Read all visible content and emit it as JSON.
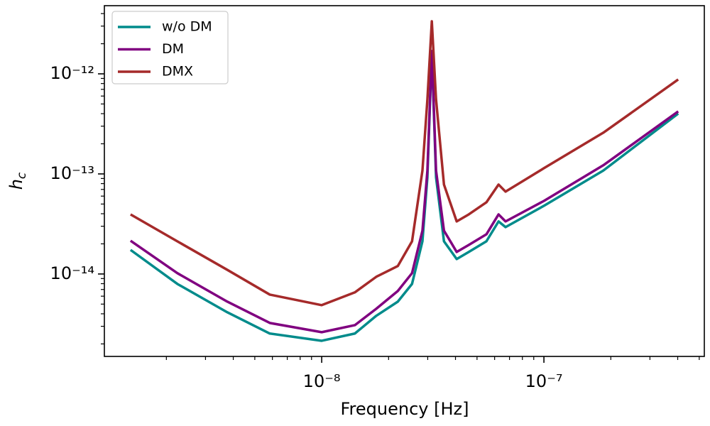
{
  "chart_data": {
    "type": "line",
    "xlabel": "Frequency [Hz]",
    "ylabel": "hc",
    "xscale": "log",
    "yscale": "log",
    "xlim": [
      1.052e-09,
      5.27e-07
    ],
    "ylim": [
      1.5e-15,
      4.8e-12
    ],
    "xticks": [
      {
        "value": 1e-08,
        "label": "10⁻⁸"
      },
      {
        "value": 1e-07,
        "label": "10⁻⁷"
      }
    ],
    "yticks": [
      {
        "value": 1e-14,
        "label": "10⁻¹⁴"
      },
      {
        "value": 1e-13,
        "label": "10⁻¹³"
      },
      {
        "value": 1e-12,
        "label": "10⁻¹²"
      }
    ],
    "legend": "upper left",
    "x": [
      1.38e-09,
      2.24e-09,
      3.76e-09,
      5.84e-09,
      1e-08,
      1.41e-08,
      1.76e-08,
      2.2e-08,
      2.55e-08,
      2.84e-08,
      2.99e-08,
      3.13e-08,
      3.27e-08,
      3.55e-08,
      4.05e-08,
      4.59e-08,
      5.51e-08,
      6.25e-08,
      6.72e-08,
      1e-07,
      1.85e-07,
      4.02e-07
    ],
    "series": [
      {
        "name": "w/o DM",
        "color": "#008b8b",
        "values": [
          1.74e-14,
          7.96e-15,
          4.14e-15,
          2.54e-15,
          2.15e-15,
          2.54e-15,
          3.82e-15,
          5.29e-15,
          7.96e-15,
          2.12e-14,
          9.23e-14,
          1.66e-12,
          9.23e-14,
          2.12e-14,
          1.41e-14,
          1.66e-14,
          2.12e-14,
          3.35e-14,
          2.94e-14,
          4.8e-14,
          1.08e-13,
          4.01e-13
        ]
      },
      {
        "name": "DM",
        "color": "#800080",
        "values": [
          2.15e-14,
          1.02e-14,
          5.29e-15,
          3.24e-15,
          2.62e-15,
          3.08e-15,
          4.49e-15,
          6.76e-15,
          1.02e-14,
          2.71e-14,
          1.08e-13,
          1.69e-12,
          1.08e-13,
          2.71e-14,
          1.66e-14,
          1.95e-14,
          2.49e-14,
          3.94e-14,
          3.35e-14,
          5.37e-14,
          1.22e-13,
          4.21e-13
        ]
      },
      {
        "name": "DMX",
        "color": "#a52a2a",
        "values": [
          3.94e-14,
          2.12e-14,
          1.1e-14,
          6.22e-15,
          4.88e-15,
          6.55e-15,
          9.37e-15,
          1.2e-14,
          2.12e-14,
          1.08e-13,
          5.56e-13,
          3.35e-12,
          5.56e-13,
          7.83e-14,
          3.35e-14,
          3.94e-14,
          5.2e-14,
          7.83e-14,
          6.65e-14,
          1.14e-13,
          2.58e-13,
          8.78e-13
        ]
      }
    ]
  }
}
